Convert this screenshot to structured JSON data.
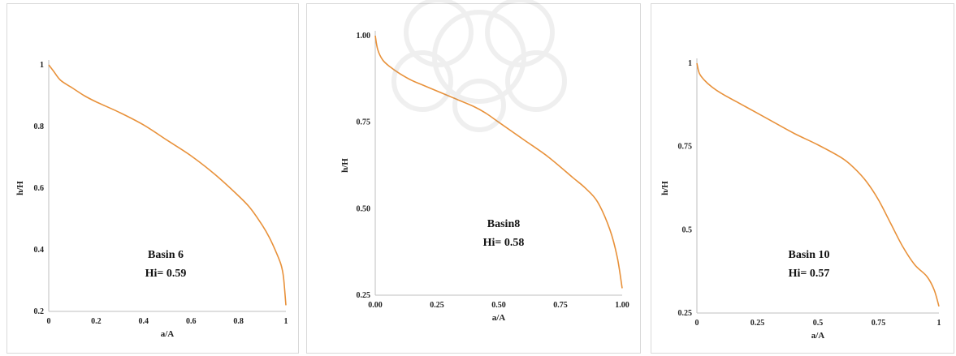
{
  "chart_data": [
    {
      "type": "line",
      "xlabel": "a/A",
      "ylabel": "h/H",
      "xlim": [
        0,
        1
      ],
      "ylim": [
        0.2,
        1
      ],
      "xticks": [
        "0",
        "0.2",
        "0.4",
        "0.6",
        "0.8",
        "1"
      ],
      "yticks": [
        "0.2",
        "0.4",
        "0.6",
        "0.8",
        "1"
      ],
      "annotation": [
        "Basin 6",
        "Hi= 0.59"
      ],
      "series": [
        {
          "color": "#e8913a",
          "x": [
            0,
            0.02,
            0.05,
            0.1,
            0.15,
            0.2,
            0.3,
            0.4,
            0.5,
            0.6,
            0.7,
            0.8,
            0.85,
            0.9,
            0.93,
            0.96,
            0.98,
            0.99,
            1.0
          ],
          "y": [
            1.0,
            0.98,
            0.95,
            0.925,
            0.9,
            0.88,
            0.845,
            0.805,
            0.755,
            0.705,
            0.645,
            0.575,
            0.535,
            0.48,
            0.44,
            0.39,
            0.35,
            0.31,
            0.22
          ]
        }
      ]
    },
    {
      "type": "line",
      "xlabel": "a/A",
      "ylabel": "h/H",
      "xlim": [
        0,
        1
      ],
      "ylim": [
        0.25,
        1
      ],
      "xticks": [
        "0.00",
        "0.25",
        "0.50",
        "0.75",
        "1.00"
      ],
      "yticks": [
        "0.25",
        "0.50",
        "0.75",
        "1.00"
      ],
      "annotation": [
        "Basin8",
        "Hi= 0.58"
      ],
      "series": [
        {
          "color": "#e8913a",
          "x": [
            0,
            0.01,
            0.03,
            0.06,
            0.1,
            0.15,
            0.2,
            0.3,
            0.4,
            0.45,
            0.5,
            0.6,
            0.7,
            0.8,
            0.85,
            0.9,
            0.95,
            0.98,
            1.0
          ],
          "y": [
            1.0,
            0.96,
            0.93,
            0.91,
            0.89,
            0.87,
            0.855,
            0.825,
            0.795,
            0.775,
            0.75,
            0.7,
            0.65,
            0.59,
            0.56,
            0.52,
            0.44,
            0.36,
            0.27
          ]
        }
      ]
    },
    {
      "type": "line",
      "xlabel": "a/A",
      "ylabel": "h/H",
      "xlim": [
        0,
        1
      ],
      "ylim": [
        0.25,
        1
      ],
      "xticks": [
        "0",
        "0.25",
        "0.5",
        "0.75",
        "1"
      ],
      "yticks": [
        "0.25",
        "0.5",
        "0.75",
        "1"
      ],
      "annotation": [
        "Basin 10",
        "Hi= 0.57"
      ],
      "series": [
        {
          "color": "#e8913a",
          "x": [
            0,
            0.01,
            0.03,
            0.06,
            0.1,
            0.2,
            0.3,
            0.4,
            0.5,
            0.6,
            0.65,
            0.7,
            0.75,
            0.8,
            0.85,
            0.9,
            0.95,
            0.98,
            1.0
          ],
          "y": [
            1.0,
            0.97,
            0.95,
            0.93,
            0.91,
            0.87,
            0.83,
            0.79,
            0.755,
            0.715,
            0.685,
            0.645,
            0.59,
            0.52,
            0.45,
            0.395,
            0.36,
            0.32,
            0.27
          ]
        }
      ]
    }
  ]
}
